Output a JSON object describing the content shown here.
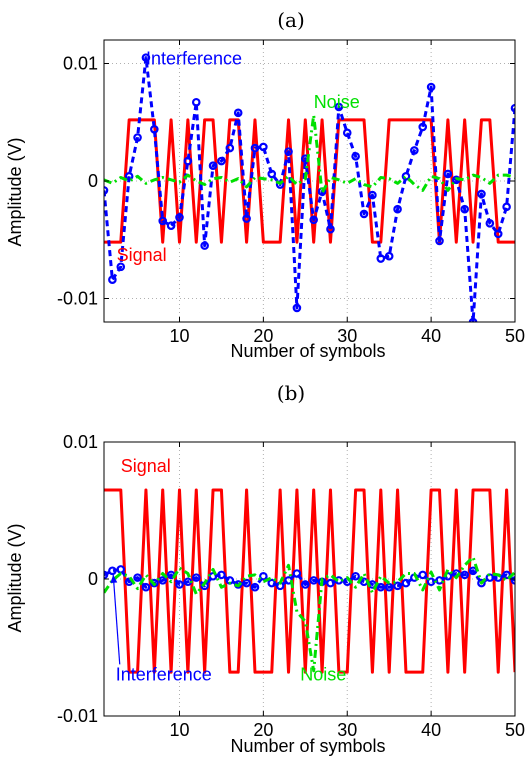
{
  "colors": {
    "signal": "#ff0000",
    "interference": "#0000ff",
    "noise": "#00e000",
    "grid": "#b0b0b0",
    "axes": "#000000"
  },
  "chart_data": [
    {
      "type": "line",
      "panel_label": "(a)",
      "xlabel": "Number of symbols",
      "ylabel": "Amplitude (V)",
      "xlim": [
        1,
        50
      ],
      "ylim": [
        -0.012,
        0.012
      ],
      "grid": true,
      "xticks": [
        10,
        20,
        30,
        40,
        50
      ],
      "xtick_labels": [
        "10",
        "20",
        "30",
        "40",
        "50"
      ],
      "yticks": [
        -0.01,
        0,
        0.01
      ],
      "ytick_labels": [
        "-0.01",
        "0",
        "0.01"
      ],
      "annotations": [
        {
          "text": "Interference",
          "series": "interference",
          "x": 6.0,
          "y": 0.0099
        },
        {
          "text": "Noise",
          "series": "noise",
          "x": 26.0,
          "y": 0.0062
        },
        {
          "text": "Signal",
          "series": "signal",
          "x": 2.5,
          "y": -0.0068
        }
      ],
      "series": [
        {
          "key": "signal",
          "style": "solid",
          "x": [
            1,
            2,
            3,
            4,
            5,
            6,
            7,
            8,
            9,
            10,
            11,
            12,
            13,
            14,
            15,
            16,
            17,
            18,
            19,
            20,
            21,
            22,
            23,
            24,
            25,
            26,
            27,
            28,
            29,
            30,
            31,
            32,
            33,
            34,
            35,
            36,
            37,
            38,
            39,
            40,
            41,
            42,
            43,
            44,
            45,
            46,
            47,
            48,
            49,
            50
          ],
          "values": [
            -0.0052,
            -0.0052,
            -0.0052,
            0.0052,
            0.0052,
            0.0052,
            0.0052,
            -0.0052,
            0.0052,
            -0.0052,
            0.0052,
            -0.0052,
            0.0052,
            0.0052,
            -0.0052,
            0.0052,
            0.0052,
            -0.0052,
            0.0052,
            -0.0052,
            -0.0052,
            -0.0052,
            0.0052,
            -0.0052,
            0.0052,
            -0.0052,
            0.0052,
            -0.0052,
            0.0052,
            0.0052,
            0.0052,
            0.0052,
            -0.0052,
            -0.0052,
            0.0052,
            0.0052,
            0.0052,
            0.0052,
            0.0052,
            0.0052,
            -0.0052,
            0.0052,
            -0.0052,
            0.0052,
            -0.0052,
            0.0052,
            0.0052,
            -0.0052,
            -0.0052,
            -0.0052
          ]
        },
        {
          "key": "interference",
          "style": "dashed",
          "markers": true,
          "x": [
            1,
            2,
            3,
            4,
            5,
            6,
            7,
            8,
            9,
            10,
            11,
            12,
            13,
            14,
            15,
            16,
            17,
            18,
            19,
            20,
            21,
            22,
            23,
            24,
            25,
            26,
            27,
            28,
            29,
            30,
            31,
            32,
            33,
            34,
            35,
            36,
            37,
            38,
            39,
            40,
            41,
            42,
            43,
            44,
            45,
            46,
            47,
            48,
            49,
            50
          ],
          "values": [
            -0.0008,
            -0.0084,
            -0.0073,
            0.0004,
            0.0037,
            0.0105,
            0.0044,
            -0.0034,
            -0.0038,
            -0.0031,
            0.0017,
            0.0067,
            -0.0055,
            0.0013,
            0.0017,
            0.0028,
            0.0058,
            -0.0032,
            0.0028,
            0.0029,
            0.0006,
            -0.0003,
            0.0025,
            -0.0108,
            0.0019,
            -0.0033,
            -0.0009,
            -0.0041,
            0.0063,
            0.0041,
            0.0021,
            -0.0028,
            -0.0012,
            -0.0066,
            -0.0064,
            -0.0024,
            0.0004,
            0.0026,
            0.0046,
            0.008,
            -0.0051,
            0.0006,
            0.0001,
            -0.0024,
            -0.012,
            -0.0011,
            -0.0036,
            -0.0045,
            -0.0022,
            0.0062
          ]
        },
        {
          "key": "noise",
          "style": "dashdot",
          "x": [
            1,
            2,
            3,
            4,
            5,
            6,
            7,
            8,
            9,
            10,
            11,
            12,
            13,
            14,
            15,
            16,
            17,
            18,
            19,
            20,
            21,
            22,
            23,
            24,
            25,
            26,
            27,
            28,
            29,
            30,
            31,
            32,
            33,
            34,
            35,
            36,
            37,
            38,
            39,
            40,
            41,
            42,
            43,
            44,
            45,
            46,
            47,
            48,
            49,
            50
          ],
          "values": [
            0.0001,
            -0.0002,
            0.0003,
            0.0,
            0.0004,
            -0.0002,
            0.0001,
            0.0003,
            0.0001,
            -0.0001,
            0.0005,
            0.0,
            -0.0003,
            0.0002,
            0.0003,
            -0.0001,
            0.0002,
            -0.0005,
            0.0003,
            0.0002,
            0.0001,
            -0.0002,
            0.0004,
            -0.0003,
            0.0002,
            0.0056,
            -0.001,
            0.0003,
            0.0001,
            -0.0002,
            0.0002,
            -0.0003,
            -0.0005,
            0.0003,
            0.0002,
            -0.0002,
            0.0004,
            -0.0003,
            -0.0008,
            0.0004,
            0.0002,
            -0.0008,
            0.0002,
            0.0001,
            0.0005,
            0.0003,
            -0.0002,
            0.0005,
            0.0005,
            0.0003
          ]
        }
      ]
    },
    {
      "type": "line",
      "panel_label": "(b)",
      "xlabel": "Number of symbols",
      "ylabel": "Amplitude (V)",
      "xlim": [
        1,
        50
      ],
      "ylim": [
        -0.01,
        0.01
      ],
      "grid": true,
      "xticks": [
        10,
        20,
        30,
        40,
        50
      ],
      "xtick_labels": [
        "10",
        "20",
        "30",
        "40",
        "50"
      ],
      "yticks": [
        -0.01,
        0,
        0.01
      ],
      "ytick_labels": [
        "-0.01",
        "0",
        "0.01"
      ],
      "annotations": [
        {
          "text": "Signal",
          "series": "signal",
          "x": 3.0,
          "y": 0.0078
        },
        {
          "text": "Interference",
          "series": "interference",
          "x": 2.4,
          "y": -0.0074,
          "arrow_to": [
            2.1,
            0.0006
          ]
        },
        {
          "text": "Noise",
          "series": "noise",
          "x": 24.4,
          "y": -0.0074
        }
      ],
      "series": [
        {
          "key": "signal",
          "style": "solid",
          "x": [
            1,
            2,
            3,
            4,
            5,
            6,
            7,
            8,
            9,
            10,
            11,
            12,
            13,
            14,
            15,
            16,
            17,
            18,
            19,
            20,
            21,
            22,
            23,
            24,
            25,
            26,
            27,
            28,
            29,
            30,
            31,
            32,
            33,
            34,
            35,
            36,
            37,
            38,
            39,
            40,
            41,
            42,
            43,
            44,
            45,
            46,
            47,
            48,
            49,
            50
          ],
          "values": [
            0.0065,
            0.0065,
            0.0065,
            -0.0068,
            -0.0068,
            0.0065,
            -0.0068,
            0.0065,
            -0.0068,
            0.0065,
            -0.0068,
            0.0065,
            -0.0068,
            0.0065,
            0.0065,
            -0.0068,
            -0.0068,
            0.0065,
            -0.0068,
            -0.0068,
            -0.0068,
            0.0065,
            -0.0068,
            0.0065,
            -0.0068,
            0.0065,
            -0.0068,
            0.0065,
            -0.0068,
            -0.0068,
            0.0065,
            0.0065,
            -0.0068,
            0.0065,
            -0.0068,
            0.0065,
            -0.0068,
            -0.0068,
            -0.0068,
            0.0065,
            0.0065,
            -0.0068,
            0.0065,
            -0.0068,
            0.0065,
            0.0065,
            0.0065,
            -0.0068,
            0.0065,
            -0.0068
          ]
        },
        {
          "key": "interference",
          "style": "dashed",
          "markers": true,
          "x": [
            1,
            2,
            3,
            4,
            5,
            6,
            7,
            8,
            9,
            10,
            11,
            12,
            13,
            14,
            15,
            16,
            17,
            18,
            19,
            20,
            21,
            22,
            23,
            24,
            25,
            26,
            27,
            28,
            29,
            30,
            31,
            32,
            33,
            34,
            35,
            36,
            37,
            38,
            39,
            40,
            41,
            42,
            43,
            44,
            45,
            46,
            47,
            48,
            49,
            50
          ],
          "values": [
            0.0003,
            0.0006,
            0.0007,
            -0.0002,
            0.0001,
            -0.0006,
            -0.0003,
            -0.0001,
            0.0003,
            -0.0004,
            -0.0002,
            0.0001,
            -0.0005,
            0.0002,
            0.0003,
            -0.0001,
            -0.0004,
            -0.0003,
            -0.0006,
            0.0002,
            -0.0003,
            -0.0005,
            -0.0001,
            0.0004,
            -0.0004,
            -0.0001,
            -0.0002,
            -0.0003,
            -0.0001,
            -0.0002,
            0.0002,
            -0.0002,
            -0.0004,
            -0.0006,
            -0.0006,
            -0.0005,
            -0.0003,
            0.0001,
            0.0003,
            -0.0002,
            -0.0001,
            0.0002,
            0.0004,
            0.0003,
            0.0006,
            -0.0003,
            0.0001,
            0.0001,
            0.0003,
            -0.0001
          ]
        },
        {
          "key": "noise",
          "style": "dashdot",
          "x": [
            1,
            2,
            3,
            4,
            5,
            6,
            7,
            8,
            9,
            10,
            11,
            12,
            13,
            14,
            15,
            16,
            17,
            18,
            19,
            20,
            21,
            22,
            23,
            24,
            25,
            26,
            27,
            28,
            29,
            30,
            31,
            32,
            33,
            34,
            35,
            36,
            37,
            38,
            39,
            40,
            41,
            42,
            43,
            44,
            45,
            46,
            47,
            48,
            49,
            50
          ],
          "values": [
            -0.001,
            -0.0001,
            0.0004,
            0.0002,
            -0.0007,
            0.0003,
            -0.0004,
            0.0004,
            -0.0002,
            0.0008,
            0.0004,
            -0.0011,
            -0.0003,
            0.0007,
            -0.0006,
            -0.0003,
            -0.0005,
            0.0002,
            0.0003,
            -0.0002,
            0.0001,
            -0.0003,
            0.001,
            -0.0024,
            -0.0031,
            -0.0067,
            0.0,
            0.0003,
            -0.0002,
            0.0001,
            -0.0006,
            0.0004,
            -0.001,
            0.0002,
            -0.0003,
            -0.0002,
            0.0004,
            0.0004,
            -0.0008,
            0.0005,
            -0.0008,
            0.0007,
            0.0001,
            0.001,
            0.0016,
            -0.0003,
            0.0004,
            0.0003,
            -0.0001,
            0.0005
          ]
        }
      ]
    }
  ]
}
